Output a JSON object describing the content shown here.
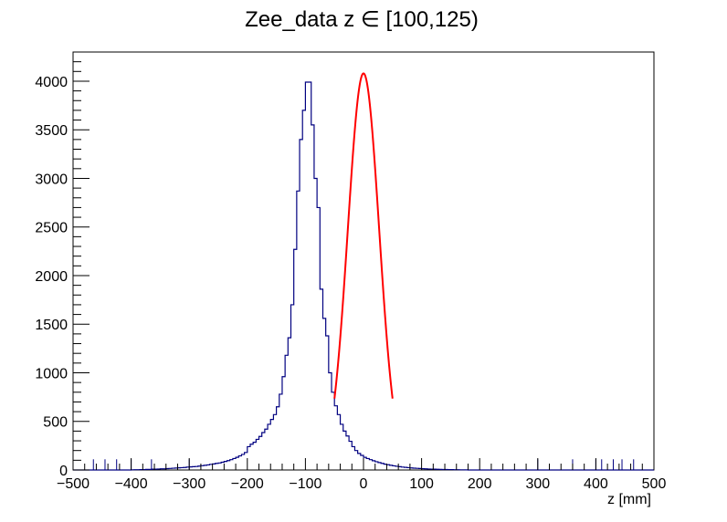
{
  "chart_data": {
    "type": "histogram",
    "title": "Zee_data z  ∈ [100,125)",
    "xlabel": "z [mm]",
    "ylabel": "",
    "xlim": [
      -500,
      500
    ],
    "ylim": [
      0,
      4300
    ],
    "x_ticks": [
      "−500",
      "−400",
      "−300",
      "−200",
      "−100",
      "0",
      "100",
      "200",
      "300",
      "400",
      "500"
    ],
    "y_ticks": [
      "0",
      "500",
      "1000",
      "1500",
      "2000",
      "2500",
      "3000",
      "3500",
      "4000"
    ],
    "bin_width": 5,
    "bin_edges_start": -500,
    "series": [
      {
        "kind": "histogram",
        "color": "#000080",
        "values": [
          0,
          0,
          0,
          0,
          0,
          0,
          0,
          0,
          0,
          0,
          0,
          0,
          0,
          0,
          0,
          0,
          0,
          0,
          0,
          0,
          2,
          3,
          3,
          4,
          4,
          6,
          6,
          8,
          8,
          10,
          12,
          12,
          14,
          16,
          18,
          20,
          22,
          24,
          26,
          30,
          32,
          34,
          36,
          40,
          44,
          48,
          52,
          58,
          62,
          68,
          72,
          80,
          88,
          96,
          106,
          118,
          130,
          145,
          160,
          180,
          240,
          265,
          285,
          315,
          345,
          385,
          420,
          470,
          520,
          570,
          650,
          780,
          960,
          1180,
          1360,
          1700,
          2270,
          2870,
          3400,
          3700,
          3990,
          3990,
          3550,
          3000,
          2700,
          1860,
          1560,
          1380,
          1000,
          800,
          660,
          570,
          470,
          400,
          350,
          295,
          240,
          200,
          170,
          150,
          130,
          118,
          106,
          95,
          85,
          76,
          68,
          60,
          54,
          48,
          43,
          38,
          34,
          30,
          27,
          24,
          21,
          19,
          17,
          15,
          13,
          12,
          10,
          9,
          8,
          7,
          6,
          5,
          5,
          4,
          4,
          3,
          3,
          2,
          2,
          1,
          0,
          0,
          0,
          0,
          0,
          0,
          0,
          0,
          0,
          0,
          0,
          0,
          0,
          0,
          0,
          0,
          0,
          0,
          0,
          0,
          0,
          0,
          0,
          0,
          0,
          0,
          0,
          0,
          0,
          0,
          0,
          0,
          0,
          0,
          0,
          0,
          0,
          0,
          0,
          0,
          0,
          0,
          0,
          0,
          0,
          0,
          0,
          0,
          0,
          0,
          0,
          0,
          0,
          0,
          0,
          0,
          0,
          0,
          0,
          0,
          0,
          0,
          0,
          0
        ]
      },
      {
        "kind": "fit",
        "color": "#ff0000",
        "function": "gaussian",
        "amplitude": 4080,
        "mean": 0,
        "sigma": 27,
        "range": [
          -50,
          50
        ]
      }
    ],
    "error_bar_bins": [
      -465,
      -445,
      -425,
      -400,
      -365,
      -300,
      300,
      360,
      400,
      410,
      430,
      445,
      465
    ],
    "grid": false,
    "legend": "none",
    "frame_color": "#000000",
    "background": "#ffffff"
  }
}
